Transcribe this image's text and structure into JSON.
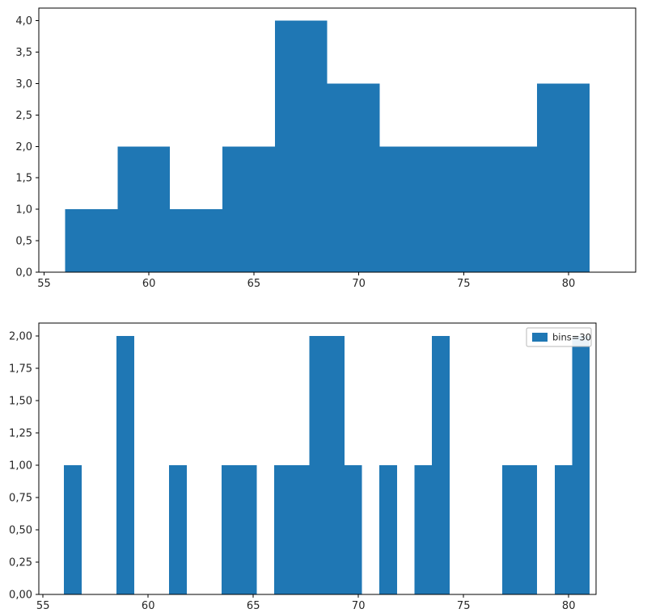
{
  "figure": {
    "background": "#ffffff",
    "bar_color": "#1f77b4",
    "axis_color": "#000000",
    "tick_label_color": "#262626",
    "legend_border_color": "#b9b9b9"
  },
  "chart_data": [
    {
      "type": "bar",
      "subtype": "histogram",
      "title": "",
      "xlabel": "",
      "ylabel": "",
      "grid": false,
      "bin_start": 56,
      "bin_width": 2.5,
      "bin_edges": [
        56,
        58.5,
        61,
        63.5,
        66,
        68.5,
        71,
        73.5,
        76,
        78.5,
        81
      ],
      "counts": [
        1,
        2,
        1,
        2,
        4,
        3,
        2,
        2,
        2,
        3
      ],
      "xlim": [
        54.75,
        83.2
      ],
      "ylim": [
        0,
        4.2
      ],
      "xticks": [
        55,
        60,
        65,
        70,
        75,
        80
      ],
      "xtick_labels": [
        "55",
        "60",
        "65",
        "70",
        "75",
        "80"
      ],
      "yticks": [
        0,
        0.5,
        1,
        1.5,
        2,
        2.5,
        3,
        3.5,
        4
      ],
      "ytick_labels": [
        "0,0",
        "0,5",
        "1,0",
        "1,5",
        "2,0",
        "2,5",
        "3,0",
        "3,5",
        "4,0"
      ],
      "legend": null
    },
    {
      "type": "bar",
      "subtype": "histogram",
      "title": "",
      "xlabel": "",
      "ylabel": "",
      "grid": false,
      "bin_start": 56,
      "bin_width": 0.8333333,
      "counts": [
        1,
        0,
        0,
        2,
        0,
        0,
        1,
        0,
        0,
        1,
        1,
        0,
        1,
        1,
        2,
        2,
        1,
        0,
        1,
        0,
        1,
        2,
        0,
        0,
        0,
        1,
        1,
        0,
        1,
        2
      ],
      "xlim": [
        54.8,
        81.3
      ],
      "ylim": [
        0,
        2.1
      ],
      "xticks": [
        55,
        60,
        65,
        70,
        75,
        80
      ],
      "xtick_labels": [
        "55",
        "60",
        "65",
        "70",
        "75",
        "80"
      ],
      "yticks": [
        0,
        0.25,
        0.5,
        0.75,
        1,
        1.25,
        1.5,
        1.75,
        2
      ],
      "ytick_labels": [
        "0,00",
        "0,25",
        "0,50",
        "0,75",
        "1,00",
        "1,25",
        "1,50",
        "1,75",
        "2,00"
      ],
      "legend": {
        "label": "bins=30",
        "position": "upper right"
      }
    }
  ]
}
